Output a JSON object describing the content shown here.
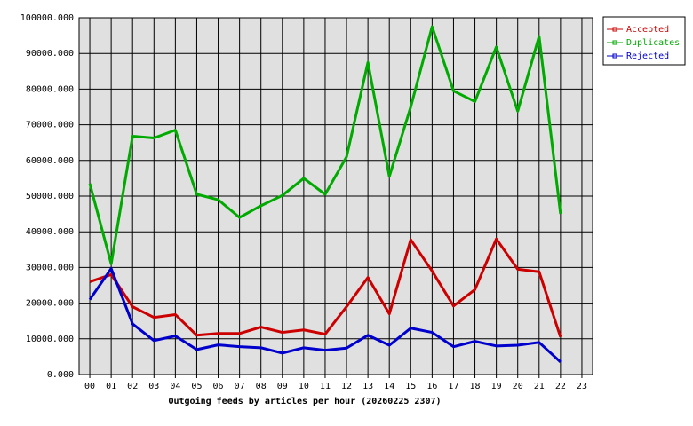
{
  "chart_data": {
    "type": "line",
    "x_label": "Outgoing feeds by articles per hour (20260225 2307)",
    "categories": [
      "00",
      "01",
      "02",
      "03",
      "04",
      "05",
      "06",
      "07",
      "08",
      "09",
      "10",
      "11",
      "12",
      "13",
      "14",
      "15",
      "16",
      "17",
      "18",
      "19",
      "20",
      "21",
      "22",
      "23"
    ],
    "series": [
      {
        "name": "Accepted",
        "color": "#cc0000",
        "values": [
          26000,
          28000,
          19000,
          16000,
          16800,
          11000,
          11500,
          11500,
          13300,
          11800,
          12500,
          11300,
          19000,
          27200,
          17000,
          37800,
          29000,
          19200,
          23800,
          38000,
          29500,
          28800,
          10500,
          null
        ]
      },
      {
        "name": "Duplicates",
        "color": "#00aa00",
        "values": [
          53500,
          31000,
          66800,
          66300,
          68500,
          50500,
          49000,
          44000,
          47300,
          50200,
          55000,
          50500,
          61000,
          87500,
          55500,
          75000,
          97500,
          79500,
          76500,
          91800,
          73800,
          94800,
          45000,
          null
        ]
      },
      {
        "name": "Rejected",
        "color": "#0000cc",
        "values": [
          21000,
          29700,
          14200,
          9500,
          10800,
          7000,
          8300,
          7800,
          7500,
          6000,
          7500,
          6800,
          7400,
          11000,
          8200,
          13000,
          11800,
          7800,
          9300,
          8000,
          8200,
          9000,
          3500,
          null
        ]
      }
    ],
    "ylim": [
      0,
      100000
    ],
    "yticks": [
      {
        "value": 0,
        "label": "0.000"
      },
      {
        "value": 10000,
        "label": "10000.000"
      },
      {
        "value": 20000,
        "label": "20000.000"
      },
      {
        "value": 30000,
        "label": "30000.000"
      },
      {
        "value": 40000,
        "label": "40000.000"
      },
      {
        "value": 50000,
        "label": "50000.000"
      },
      {
        "value": 60000,
        "label": "60000.000"
      },
      {
        "value": 70000,
        "label": "70000.000"
      },
      {
        "value": 80000,
        "label": "80000.000"
      },
      {
        "value": 90000,
        "label": "90000.000"
      },
      {
        "value": 100000,
        "label": "100000.000"
      }
    ],
    "grid": true,
    "legend": "top-right"
  }
}
